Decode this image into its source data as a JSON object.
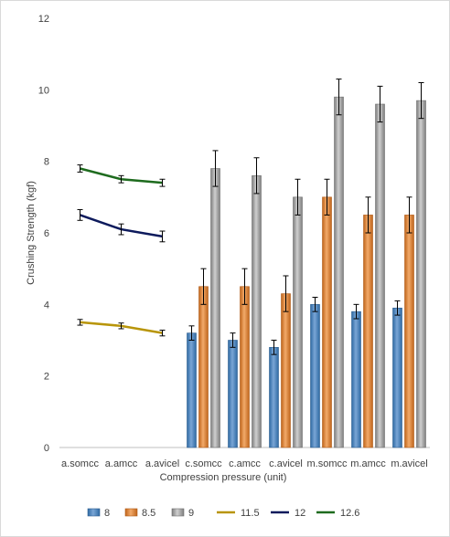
{
  "chart_data": {
    "type": "bar",
    "xlabel": "Compression pressure (unit)",
    "ylabel": "Crushing Strength (kgf)",
    "ylim": [
      0,
      12
    ],
    "yticks": [
      "0",
      "2",
      "4",
      "6",
      "8",
      "10",
      "12"
    ],
    "grid": "none",
    "legend_position": "bottom",
    "categories": [
      "a.somcc",
      "a.amcc",
      "a.avicel",
      "c.somcc",
      "c.amcc",
      "c.avicel",
      "m.somcc",
      "m.amcc",
      "m.avicel"
    ],
    "bar_series": [
      {
        "name": "8",
        "color": "#4f81bd",
        "values": [
          null,
          null,
          null,
          3.2,
          3.0,
          2.8,
          4.0,
          3.8,
          3.9
        ],
        "errors": [
          null,
          null,
          null,
          0.2,
          0.2,
          0.2,
          0.2,
          0.2,
          0.2
        ]
      },
      {
        "name": "8.5",
        "color": "#e08a3c",
        "values": [
          null,
          null,
          null,
          4.5,
          4.5,
          4.3,
          7.0,
          6.5,
          6.5
        ],
        "errors": [
          null,
          null,
          null,
          0.5,
          0.5,
          0.5,
          0.5,
          0.5,
          0.5
        ]
      },
      {
        "name": "9",
        "color": "#a5a5a5",
        "values": [
          null,
          null,
          null,
          7.8,
          7.6,
          7.0,
          9.8,
          9.6,
          9.7
        ],
        "errors": [
          null,
          null,
          null,
          0.5,
          0.5,
          0.5,
          0.5,
          0.5,
          0.5
        ]
      }
    ],
    "line_series": [
      {
        "name": "11.5",
        "color": "#b8950a",
        "values": [
          3.5,
          3.4,
          3.2,
          null,
          null,
          null,
          null,
          null,
          null
        ],
        "errors": [
          0.08,
          0.08,
          0.08,
          null,
          null,
          null,
          null,
          null,
          null
        ]
      },
      {
        "name": "12",
        "color": "#0d1a5c",
        "values": [
          6.5,
          6.1,
          5.9,
          null,
          null,
          null,
          null,
          null,
          null
        ],
        "errors": [
          0.15,
          0.15,
          0.15,
          null,
          null,
          null,
          null,
          null,
          null
        ]
      },
      {
        "name": "12.6",
        "color": "#1e6b1e",
        "values": [
          7.8,
          7.5,
          7.4,
          null,
          null,
          null,
          null,
          null,
          null
        ],
        "errors": [
          0.1,
          0.1,
          0.1,
          null,
          null,
          null,
          null,
          null,
          null
        ]
      }
    ],
    "legend": [
      "8",
      "8.5",
      "9",
      "11.5",
      "12",
      "12.6"
    ]
  }
}
